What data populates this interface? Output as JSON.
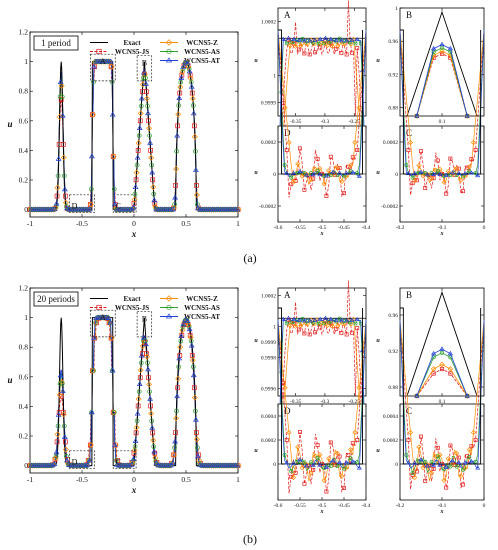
{
  "captions": [
    "(a)",
    "(b)"
  ],
  "legend": [
    "Exact",
    "WCNS5-JS",
    "WCNS5-Z",
    "WCNS5-AS",
    "WCNS5-AT"
  ],
  "colors": {
    "Exact": "#000000",
    "WCNS5-JS": "#e31a1c",
    "WCNS5-Z": "#ff8c00",
    "WCNS5-AS": "#2ca02c",
    "WCNS5-AT": "#1f3fd6"
  },
  "chart_data": [
    {
      "type": "line",
      "panel": "a-main",
      "annotation": "1 period",
      "xlabel": "x",
      "ylabel": "u",
      "xlim": [
        -1,
        1
      ],
      "ylim": [
        -0.05,
        1.2
      ],
      "xticks": [
        "-1",
        "-0.5",
        "0",
        "0.5",
        "1"
      ],
      "yticks": [
        "0",
        "0.2",
        "0.4",
        "0.6",
        "0.8",
        "1",
        "1.2"
      ],
      "zoom_boxes": [
        "A",
        "B",
        "C",
        "D"
      ],
      "legend_position": "top",
      "series": [
        {
          "name": "Exact",
          "peaks": {
            "gaussian": [
              -0.7,
              1
            ],
            "square": [
              -0.4,
              1
            ],
            "triangle": [
              0.1,
              1
            ],
            "ellipse": [
              0.5,
              1
            ]
          }
        }
      ]
    },
    {
      "type": "line",
      "panel": "a-A",
      "label": "A",
      "xlim": [
        -0.38,
        -0.23
      ],
      "ylim": [
        0.99985,
        1.00025
      ],
      "xticks": [
        "-0.35",
        "-0.3",
        "-0.25"
      ],
      "yticks": [
        "0.9999",
        "1",
        "1.0002"
      ],
      "xlabel": "x",
      "ylabel": "u"
    },
    {
      "type": "line",
      "panel": "a-B",
      "label": "B",
      "xlim": [
        0.07,
        0.13
      ],
      "ylim": [
        0.87,
        1.0
      ],
      "xticks": [
        "0.1"
      ],
      "yticks": [
        "0.88",
        "0.92",
        "0.96",
        "1"
      ],
      "xlabel": "x",
      "ylabel": "u"
    },
    {
      "type": "line",
      "panel": "a-D",
      "label": "D",
      "xlim": [
        -0.6,
        -0.4
      ],
      "ylim": [
        -0.0003,
        0.0003
      ],
      "xticks": [
        "-0.6",
        "-0.55",
        "-0.5",
        "-0.45",
        "-0.4"
      ],
      "yticks": [
        "-0.0002",
        "0",
        "0.0002"
      ],
      "xlabel": "x",
      "ylabel": "u"
    },
    {
      "type": "line",
      "panel": "a-C",
      "label": "C",
      "xlim": [
        -0.2,
        0
      ],
      "ylim": [
        -0.0003,
        0.0003
      ],
      "xticks": [
        "-0.2",
        "-0.1",
        "0"
      ],
      "yticks": [
        "-0.0002",
        "0",
        "0.0002"
      ],
      "xlabel": "x",
      "ylabel": "u"
    },
    {
      "type": "line",
      "panel": "b-main",
      "annotation": "20 periods",
      "xlabel": "x",
      "ylabel": "u",
      "xlim": [
        -1,
        1
      ],
      "ylim": [
        -0.05,
        1.2
      ],
      "xticks": [
        "-1",
        "-0.5",
        "0",
        "0.5",
        "1"
      ],
      "yticks": [
        "0",
        "0.2",
        "0.4",
        "0.6",
        "0.8",
        "1",
        "1.2"
      ],
      "zoom_boxes": [
        "A",
        "B",
        "C",
        "D"
      ],
      "legend_position": "top"
    },
    {
      "type": "line",
      "panel": "b-A",
      "label": "A",
      "xlim": [
        -0.38,
        -0.23
      ],
      "ylim": [
        0.99955,
        1.00025
      ],
      "xticks": [
        "-0.35",
        "-0.3",
        "-0.25"
      ],
      "yticks": [
        "0.9996",
        "0.9998",
        "0.9999",
        "1",
        "1.0002"
      ],
      "xlabel": "x",
      "ylabel": "u"
    },
    {
      "type": "line",
      "panel": "b-B",
      "label": "B",
      "xlim": [
        0.07,
        0.13
      ],
      "ylim": [
        0.87,
        0.99
      ],
      "xticks": [
        "0.1"
      ],
      "yticks": [
        "0.88",
        "0.92",
        "0.96"
      ],
      "xlabel": "x",
      "ylabel": "u"
    },
    {
      "type": "line",
      "panel": "b-D",
      "label": "D",
      "xlim": [
        -0.6,
        -0.4
      ],
      "ylim": [
        -0.0003,
        0.0005
      ],
      "xticks": [
        "-0.6",
        "-0.55",
        "-0.5",
        "-0.45",
        "-0.4"
      ],
      "yticks": [
        "0",
        "0.0002",
        "0.0004"
      ],
      "xlabel": "x",
      "ylabel": "u"
    },
    {
      "type": "line",
      "panel": "b-C",
      "label": "C",
      "xlim": [
        -0.2,
        0
      ],
      "ylim": [
        -0.0003,
        0.0005
      ],
      "xticks": [
        "-0.2",
        "-0.1",
        "0"
      ],
      "yticks": [
        "0",
        "0.0002",
        "0.0004"
      ],
      "xlabel": "x",
      "ylabel": "u"
    }
  ]
}
